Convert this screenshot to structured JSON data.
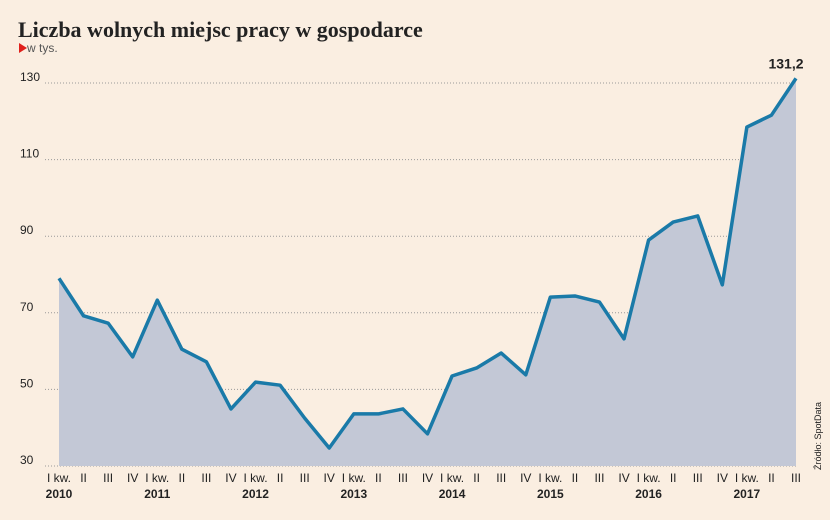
{
  "chart_data": {
    "type": "area",
    "title": "Liczba wolnych miejsc pracy w gospodarce",
    "subtitle": "w tys.",
    "source": "Źródło: SpotData",
    "categories": [
      "I kw.",
      "II",
      "III",
      "IV",
      "I kw.",
      "II",
      "III",
      "IV",
      "I kw.",
      "II",
      "III",
      "IV",
      "I kw.",
      "II",
      "III",
      "IV",
      "I kw.",
      "II",
      "III",
      "IV",
      "I kw.",
      "II",
      "III",
      "IV",
      "I kw.",
      "II",
      "III",
      "IV",
      "I kw.",
      "II",
      "III"
    ],
    "years": [
      "2010",
      "2011",
      "2012",
      "2013",
      "2014",
      "2015",
      "2016",
      "2017"
    ],
    "values": [
      79,
      69.2,
      67.3,
      58.5,
      73.3,
      60.5,
      57.2,
      44.9,
      51.9,
      51.1,
      42.5,
      34.7,
      43.6,
      43.6,
      44.9,
      38.4,
      53.5,
      55.6,
      59.5,
      53.8,
      74.1,
      74.4,
      72.8,
      63.2,
      89,
      93.7,
      95.3,
      77.3,
      118.5,
      121.6,
      131.2
    ],
    "value_labels": [
      null,
      null,
      null,
      null,
      null,
      null,
      null,
      null,
      null,
      null,
      null,
      null,
      null,
      null,
      null,
      null,
      null,
      null,
      null,
      null,
      null,
      null,
      null,
      null,
      null,
      null,
      null,
      null,
      null,
      null,
      "131,2"
    ],
    "color": "#1a7aa8",
    "fill": "#c3c8d6",
    "ylim": [
      30,
      130
    ],
    "yticks": [
      30,
      50,
      70,
      90,
      110,
      130
    ],
    "grid": true
  }
}
